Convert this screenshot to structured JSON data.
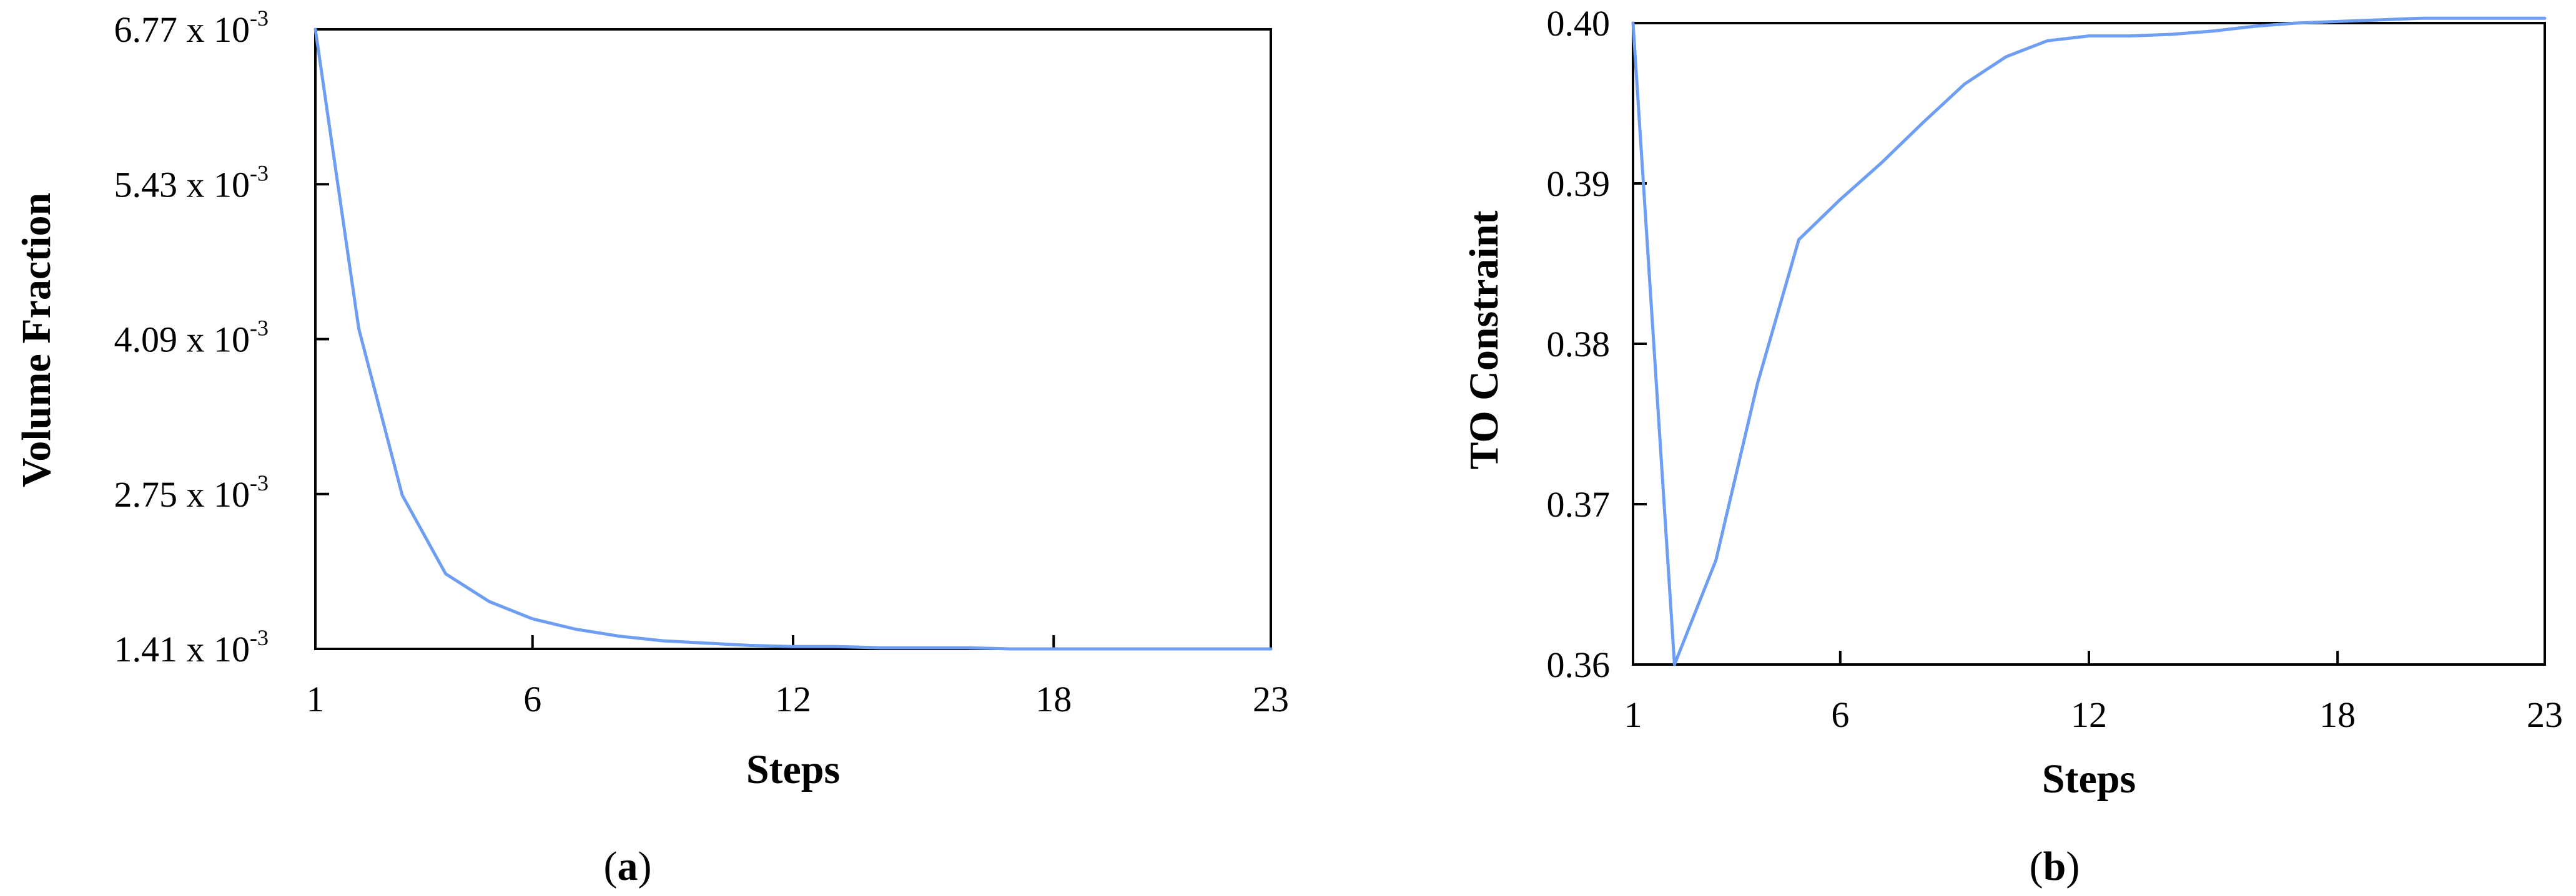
{
  "chart_data": [
    {
      "type": "line",
      "panel": "a",
      "xlabel": "Steps",
      "ylabel": "Volume Fraction",
      "xlim": [
        1,
        23
      ],
      "ylim": [
        0.00141,
        0.00677
      ],
      "xticks": [
        1,
        6,
        12,
        18,
        23
      ],
      "xtick_labels": [
        "1",
        "6",
        "12",
        "18",
        "23"
      ],
      "yticks": [
        0.00141,
        0.00275,
        0.00409,
        0.00543,
        0.00677
      ],
      "ytick_mantissas": [
        "1.41",
        "2.75",
        "4.09",
        "5.43",
        "6.77"
      ],
      "ytick_mult": "x 10",
      "ytick_exp": "-3",
      "grid": false,
      "line_color": "#6d9ef3",
      "series": [
        {
          "x": [
            1,
            2,
            3,
            4,
            5,
            6,
            7,
            8,
            9,
            10,
            11,
            12,
            13,
            14,
            15,
            16,
            17,
            18,
            19,
            20,
            21,
            22,
            23
          ],
          "values": [
            0.00677,
            0.00418,
            0.00274,
            0.00206,
            0.00182,
            0.00167,
            0.00158,
            0.00152,
            0.00148,
            0.00146,
            0.00144,
            0.00143,
            0.00143,
            0.00142,
            0.00142,
            0.00142,
            0.00141,
            0.00141,
            0.00141,
            0.00141,
            0.00141,
            0.00141,
            0.00141
          ]
        }
      ]
    },
    {
      "type": "line",
      "panel": "b",
      "xlabel": "Steps",
      "ylabel": "TO Constraint",
      "xlim": [
        1,
        23
      ],
      "ylim": [
        0.36,
        0.4
      ],
      "xticks": [
        1,
        6,
        12,
        18,
        23
      ],
      "xtick_labels": [
        "1",
        "6",
        "12",
        "18",
        "23"
      ],
      "yticks": [
        0.36,
        0.37,
        0.38,
        0.39,
        0.4
      ],
      "ytick_labels": [
        "0.36",
        "0.37",
        "0.38",
        "0.39",
        "0.40"
      ],
      "grid": false,
      "line_color": "#6d9ef3",
      "series": [
        {
          "x": [
            1,
            2,
            3,
            4,
            5,
            6,
            7,
            8,
            9,
            10,
            11,
            12,
            13,
            14,
            15,
            16,
            17,
            18,
            19,
            20,
            21,
            22,
            23
          ],
          "values": [
            0.4,
            0.36,
            0.3665,
            0.3775,
            0.3865,
            0.389,
            0.3913,
            0.3938,
            0.3962,
            0.3979,
            0.3989,
            0.3992,
            0.3992,
            0.3993,
            0.3995,
            0.3998,
            0.4,
            0.4001,
            0.4002,
            0.4003,
            0.4003,
            0.4003,
            0.4003
          ]
        }
      ]
    }
  ],
  "panels": {
    "a": {
      "label_open": "(",
      "label_letter": "a",
      "label_close": ")"
    },
    "b": {
      "label_open": "(",
      "label_letter": "b",
      "label_close": ")"
    }
  }
}
